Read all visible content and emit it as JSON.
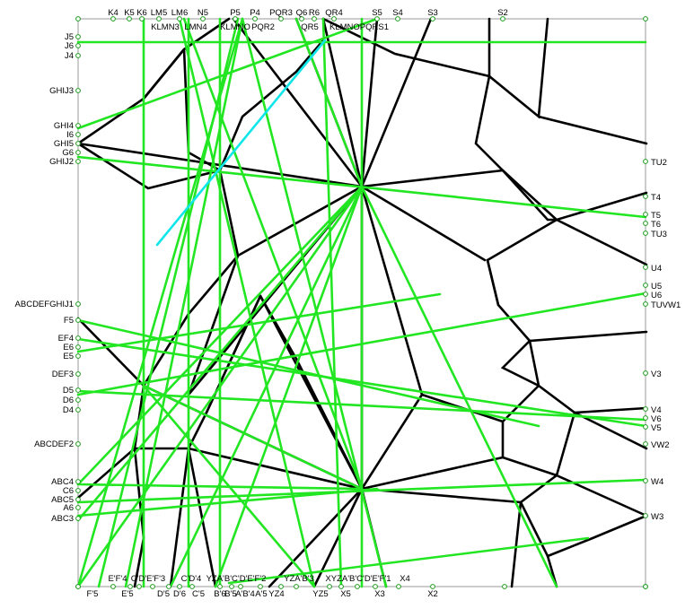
{
  "labels": {
    "top": [
      "K4",
      "K5",
      "K6",
      "LM5",
      "LM6",
      "N5",
      "P5",
      "P4",
      "PQR3",
      "Q6",
      "R6",
      "QR4",
      "S5",
      "S4",
      "S3",
      "S2"
    ],
    "top_row2": [
      "KLMN3",
      "LMN4",
      "KLMNO",
      "PQR2",
      "QR5",
      "KLMNOPQRS1"
    ],
    "left": [
      "J5",
      "J6",
      "J4",
      "GHIJ3",
      "GHI4",
      "I6",
      "GHI5",
      "G6",
      "GHIJ2",
      "ABCDEFGHIJ1",
      "F5",
      "EF4",
      "E6",
      "E5",
      "DEF3",
      "D5",
      "D6",
      "D4",
      "ABCDEF2",
      "ABC4",
      "C6",
      "ABC5",
      "A6",
      "ABC3"
    ],
    "right": [
      "TU2",
      "T4",
      "T5",
      "T6",
      "TU3",
      "U4",
      "U5",
      "U6",
      "TUVW1",
      "V3",
      "V4",
      "V6",
      "V5",
      "VW2",
      "W4",
      "W3"
    ],
    "bottom": [
      "E'F'4",
      "C'D'E'F'3",
      "C'D'4",
      "YZA'B'C'D'E'F'2",
      "YZA'B'3",
      "XYZA'B'C'D'E'F'1",
      "X4",
      "F'5",
      "E'5",
      "D'5",
      "D'6",
      "C'5",
      "B'6",
      "B'5",
      "A'B'4",
      "A'5",
      "YZ4",
      "YZ5",
      "X5",
      "X3",
      "X2"
    ]
  },
  "colors": {
    "edge": "#000000",
    "crease": "#22e622",
    "highlight": "#10e6ea",
    "frame": "#9a9a9a",
    "vertex": "#1a9a1a"
  }
}
